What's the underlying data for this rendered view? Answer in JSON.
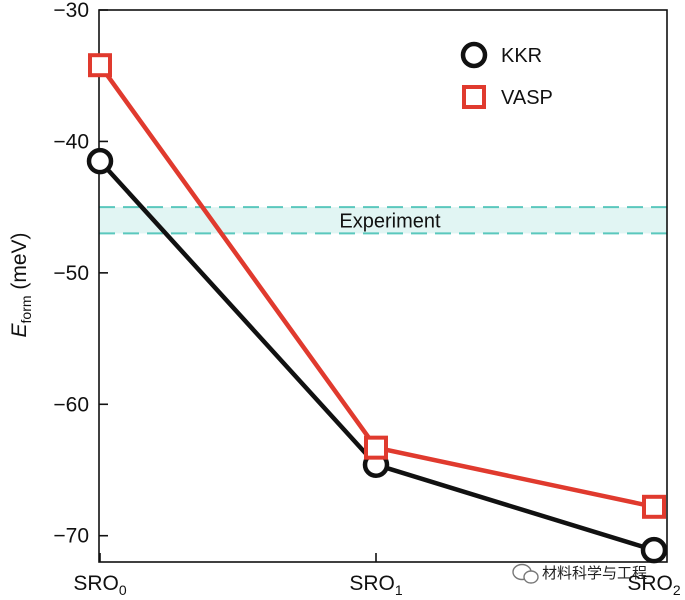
{
  "chart_data": {
    "type": "line",
    "categories": [
      "SRO",
      "SRO",
      "SRO"
    ],
    "category_subscripts": [
      "0",
      "1",
      "2"
    ],
    "series": [
      {
        "name": "KKR",
        "values": [
          -41.5,
          -64.6,
          -71.1
        ],
        "color": "#111111",
        "marker": "circle"
      },
      {
        "name": "VASP",
        "values": [
          -34.2,
          -63.3,
          -67.8
        ],
        "color": "#e03a2e",
        "marker": "square"
      }
    ],
    "band": {
      "label": "Experiment",
      "y_range": [
        -47.0,
        -45.0
      ],
      "color": "#5ac8bd"
    },
    "ylabel": {
      "main": "E",
      "subscript": "form",
      "unit": " (meV)"
    },
    "ylim": [
      -72,
      -30
    ],
    "yticks": [
      -30,
      -40,
      -50,
      -60,
      -70
    ],
    "ytick_labels": [
      "−30",
      "−40",
      "−50",
      "−60",
      "−70"
    ],
    "legend_position": "top-right",
    "grid": false
  },
  "watermark": {
    "text": "材料科学与工程",
    "icon": "wechat-icon"
  }
}
